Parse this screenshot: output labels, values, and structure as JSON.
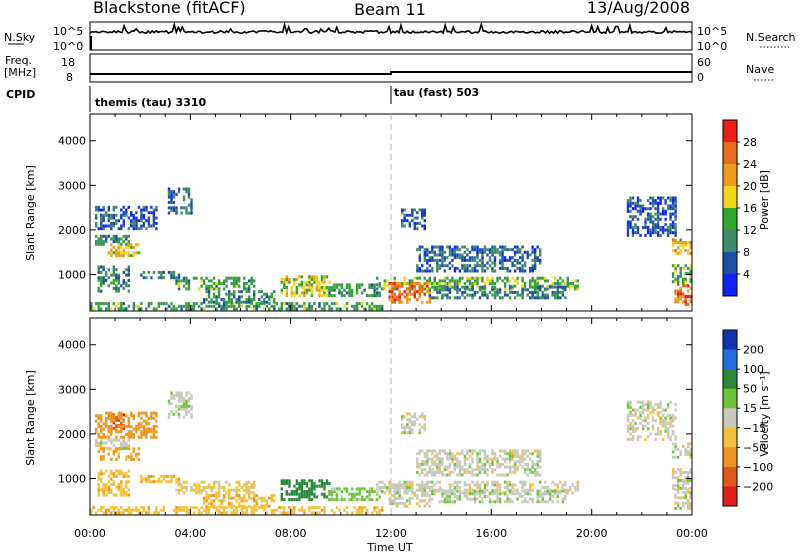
{
  "header": {
    "station": "Blackstone (fitACF)",
    "beam": "Beam 11",
    "date": "13/Aug/2008"
  },
  "summary_panels": {
    "nsky": {
      "label": "N.Sky",
      "ticks": [
        "10^5",
        "10^0"
      ]
    },
    "nsearch": {
      "label": "N.Search",
      "ticks": [
        "10^5",
        "10^0"
      ]
    },
    "freq": {
      "label_line1": "Freq.",
      "label_line2": "[MHz]",
      "ticks": [
        "18",
        "8"
      ]
    },
    "nave": {
      "label": "Nave",
      "ticks": [
        "60",
        "0"
      ]
    },
    "cpid": {
      "label": "CPID",
      "modes": [
        {
          "name": "themis (tau) 3310",
          "start_hour": 0
        },
        {
          "name": "tau (fast) 503",
          "start_hour": 12
        }
      ]
    }
  },
  "colors": {
    "power": [
      "#0f24ff",
      "#1d4ea3",
      "#3f8a6c",
      "#2fa82a",
      "#f2d61a",
      "#f09a1a",
      "#e96a1a",
      "#ee1d14"
    ],
    "velocity": [
      "#1033b0",
      "#1f6ee0",
      "#2a8a3c",
      "#6ec53a",
      "#c8c8be",
      "#f3c23a",
      "#f0961e",
      "#e25a1a",
      "#e11a1a"
    ]
  },
  "chart_data": [
    {
      "type": "heatmap",
      "name": "power-panel",
      "xlabel": "",
      "ylabel": "Slant Range [km]",
      "xlim": [
        0,
        24
      ],
      "ylim": [
        180,
        4600
      ],
      "yticks": [
        "1000",
        "2000",
        "3000",
        "4000"
      ],
      "ytick_values": [
        1000,
        2000,
        3000,
        4000
      ],
      "colorbar": {
        "label": "Power [dB]",
        "ticks": [
          "4",
          "8",
          "12",
          "16",
          "20",
          "24",
          "28"
        ],
        "range": [
          0,
          32
        ]
      },
      "regions": [
        {
          "t0": 0.2,
          "t1": 1.6,
          "r0": 1650,
          "r1": 1850,
          "v": 11
        },
        {
          "t0": 0.2,
          "t1": 2.7,
          "r0": 2000,
          "r1": 2500,
          "v": 6
        },
        {
          "t0": 3.1,
          "t1": 4.1,
          "r0": 2350,
          "r1": 2900,
          "v": 8
        },
        {
          "t0": 0.7,
          "t1": 2.0,
          "r0": 1400,
          "r1": 1650,
          "v": 19
        },
        {
          "t0": 0.3,
          "t1": 1.6,
          "r0": 600,
          "r1": 1200,
          "v": 10
        },
        {
          "t0": 2.0,
          "t1": 3.6,
          "r0": 900,
          "r1": 1050,
          "v": 9
        },
        {
          "t0": 3.4,
          "t1": 6.5,
          "r0": 650,
          "r1": 900,
          "v": 12
        },
        {
          "t0": 4.5,
          "t1": 7.3,
          "r0": 350,
          "r1": 650,
          "v": 9
        },
        {
          "t0": 7.6,
          "t1": 9.5,
          "r0": 500,
          "r1": 950,
          "v": 17
        },
        {
          "t0": 9.5,
          "t1": 11.6,
          "r0": 500,
          "r1": 800,
          "v": 11
        },
        {
          "t0": 0.0,
          "t1": 11.6,
          "r0": 200,
          "r1": 380,
          "v": 12
        },
        {
          "t0": 11.4,
          "t1": 19.5,
          "r0": 650,
          "r1": 950,
          "v": 14
        },
        {
          "t0": 11.9,
          "t1": 13.5,
          "r0": 350,
          "r1": 800,
          "v": 25
        },
        {
          "t0": 13.5,
          "t1": 19.0,
          "r0": 450,
          "r1": 700,
          "v": 9
        },
        {
          "t0": 13.0,
          "t1": 18.0,
          "r0": 1050,
          "r1": 1650,
          "v": 7
        },
        {
          "t0": 12.4,
          "t1": 13.3,
          "r0": 2000,
          "r1": 2450,
          "v": 6
        },
        {
          "t0": 21.4,
          "t1": 23.4,
          "r0": 1850,
          "r1": 2700,
          "v": 6
        },
        {
          "t0": 23.2,
          "t1": 24.0,
          "r0": 1450,
          "r1": 1800,
          "v": 20
        },
        {
          "t0": 23.2,
          "t1": 24.0,
          "r0": 750,
          "r1": 1200,
          "v": 13
        },
        {
          "t0": 23.3,
          "t1": 24.0,
          "r0": 300,
          "r1": 750,
          "v": 26
        }
      ]
    },
    {
      "type": "heatmap",
      "name": "velocity-panel",
      "xlabel": "Time UT",
      "ylabel": "Slant Range [km]",
      "xlim": [
        0,
        24
      ],
      "ylim": [
        180,
        4600
      ],
      "xticks": [
        "00:00",
        "04:00",
        "08:00",
        "12:00",
        "16:00",
        "20:00",
        "00:00"
      ],
      "xtick_values": [
        0,
        4,
        8,
        12,
        16,
        20,
        24
      ],
      "yticks": [
        "1000",
        "2000",
        "3000",
        "4000"
      ],
      "ytick_values": [
        1000,
        2000,
        3000,
        4000
      ],
      "colorbar": {
        "label": "Velocity [m s⁻¹]",
        "ticks": [
          "200",
          "100",
          "50",
          "15",
          "−15",
          "−50",
          "−100",
          "−200"
        ],
        "range": [
          -250,
          250
        ]
      },
      "regions": [
        {
          "t0": 0.2,
          "t1": 1.6,
          "r0": 1650,
          "r1": 1850,
          "v": 0
        },
        {
          "t0": 0.9,
          "t1": 1.4,
          "r0": 2100,
          "r1": 2450,
          "v": -190
        },
        {
          "t0": 0.2,
          "t1": 2.7,
          "r0": 1900,
          "r1": 2500,
          "v": -70
        },
        {
          "t0": 3.1,
          "t1": 4.1,
          "r0": 2350,
          "r1": 2900,
          "v": 5
        },
        {
          "t0": 0.3,
          "t1": 2.0,
          "r0": 1400,
          "r1": 1650,
          "v": -60
        },
        {
          "t0": 0.3,
          "t1": 1.6,
          "r0": 600,
          "r1": 1200,
          "v": -35
        },
        {
          "t0": 2.0,
          "t1": 3.6,
          "r0": 900,
          "r1": 1050,
          "v": -40
        },
        {
          "t0": 3.4,
          "t1": 6.5,
          "r0": 650,
          "r1": 900,
          "v": -30
        },
        {
          "t0": 4.5,
          "t1": 7.3,
          "r0": 350,
          "r1": 650,
          "v": -40
        },
        {
          "t0": 7.6,
          "t1": 9.5,
          "r0": 500,
          "r1": 950,
          "v": 70
        },
        {
          "t0": 9.5,
          "t1": 11.6,
          "r0": 500,
          "r1": 800,
          "v": 30
        },
        {
          "t0": 0.0,
          "t1": 11.6,
          "r0": 200,
          "r1": 380,
          "v": -35
        },
        {
          "t0": 11.4,
          "t1": 19.5,
          "r0": 650,
          "r1": 950,
          "v": 0
        },
        {
          "t0": 11.9,
          "t1": 13.5,
          "r0": 350,
          "r1": 800,
          "v": 0
        },
        {
          "t0": 13.5,
          "t1": 19.0,
          "r0": 450,
          "r1": 700,
          "v": 10
        },
        {
          "t0": 13.0,
          "t1": 18.0,
          "r0": 1050,
          "r1": 1650,
          "v": 0
        },
        {
          "t0": 12.4,
          "t1": 13.3,
          "r0": 2000,
          "r1": 2450,
          "v": 0
        },
        {
          "t0": 21.4,
          "t1": 23.4,
          "r0": 1850,
          "r1": 2700,
          "v": 0
        },
        {
          "t0": 23.2,
          "t1": 24.0,
          "r0": 1450,
          "r1": 1800,
          "v": 0
        },
        {
          "t0": 23.2,
          "t1": 24.0,
          "r0": 750,
          "r1": 1200,
          "v": 0
        },
        {
          "t0": 23.3,
          "t1": 24.0,
          "r0": 300,
          "r1": 750,
          "v": 0
        }
      ]
    }
  ]
}
